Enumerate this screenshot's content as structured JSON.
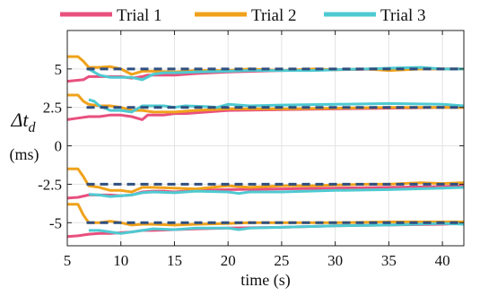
{
  "chart_data": {
    "type": "line",
    "xlabel": "time (s)",
    "ylabel_symbol": "Δt",
    "ylabel_subscript": "d",
    "ylabel_unit": "(ms)",
    "xlim": [
      5,
      42
    ],
    "ylim": [
      -6.5,
      7.5
    ],
    "xticks": [
      5,
      10,
      15,
      20,
      25,
      30,
      35,
      40
    ],
    "xtick_labels": [
      "5",
      "10",
      "15",
      "20",
      "25",
      "30",
      "35",
      "40"
    ],
    "yticks": [
      -5,
      -2.5,
      0,
      2.5,
      5
    ],
    "ytick_labels": [
      "-5",
      "-2.5",
      "0",
      "2.5",
      "5"
    ],
    "grid": true,
    "legend_position": "top",
    "reference_levels": [
      5,
      2.5,
      -2.5,
      -5
    ],
    "reference_color": "#2f4f7f",
    "series": [
      {
        "name": "Trial 1",
        "color": "#e8507e",
        "lines": [
          {
            "x": [
              5,
              6.5,
              7,
              8,
              9,
              10,
              11,
              12,
              12.5,
              13,
              14,
              15,
              17,
              20,
              25,
              30,
              35,
              40,
              42
            ],
            "y": [
              4.2,
              4.3,
              4.5,
              4.5,
              4.5,
              4.5,
              4.4,
              4.5,
              4.6,
              4.6,
              4.6,
              4.6,
              4.7,
              4.8,
              4.9,
              4.95,
              5.0,
              5.0,
              5.0
            ]
          },
          {
            "x": [
              5,
              6,
              7,
              8,
              9,
              10,
              11,
              12,
              12.5,
              13,
              14,
              15,
              16,
              18,
              20,
              25,
              30,
              35,
              40,
              42
            ],
            "y": [
              1.7,
              1.8,
              1.9,
              1.9,
              2.0,
              2.0,
              1.9,
              1.7,
              2.0,
              2.0,
              2.0,
              2.1,
              2.1,
              2.2,
              2.3,
              2.35,
              2.4,
              2.45,
              2.5,
              2.5
            ]
          },
          {
            "x": [
              5,
              6,
              7,
              8,
              9,
              10,
              11,
              12,
              13,
              14,
              15,
              17,
              20,
              25,
              30,
              35,
              40,
              42
            ],
            "y": [
              -3.4,
              -3.35,
              -3.2,
              -3.2,
              -3.2,
              -3.25,
              -3.2,
              -3.0,
              -2.95,
              -2.95,
              -3.0,
              -2.9,
              -2.85,
              -2.8,
              -2.75,
              -2.7,
              -2.65,
              -2.6
            ]
          },
          {
            "x": [
              5,
              6,
              7,
              8,
              9,
              10,
              11,
              12,
              13,
              15,
              17,
              20,
              25,
              30,
              35,
              40,
              42
            ],
            "y": [
              -5.9,
              -5.85,
              -5.75,
              -5.7,
              -5.7,
              -5.65,
              -5.6,
              -5.5,
              -5.5,
              -5.45,
              -5.4,
              -5.35,
              -5.3,
              -5.2,
              -5.15,
              -5.1,
              -5.05
            ]
          }
        ]
      },
      {
        "name": "Trial 2",
        "color": "#f0a21a",
        "lines": [
          {
            "x": [
              5,
              6,
              6.5,
              7,
              8,
              9,
              10,
              11,
              12,
              13,
              15,
              17,
              20,
              22,
              25,
              28,
              30,
              33,
              35,
              38,
              40,
              42
            ],
            "y": [
              5.8,
              5.8,
              5.5,
              5.1,
              5.1,
              5.15,
              5.0,
              4.65,
              4.85,
              4.85,
              4.8,
              4.9,
              4.9,
              5.0,
              4.9,
              5.0,
              4.95,
              5.0,
              4.9,
              5.0,
              5.0,
              5.0
            ]
          },
          {
            "x": [
              5,
              6,
              6.5,
              7,
              8,
              9,
              10,
              11,
              12,
              13,
              15,
              17,
              20,
              22,
              25,
              30,
              35,
              40,
              42
            ],
            "y": [
              3.3,
              3.3,
              2.9,
              2.7,
              2.6,
              2.6,
              2.5,
              2.3,
              2.3,
              2.2,
              2.2,
              2.3,
              2.4,
              2.4,
              2.4,
              2.45,
              2.5,
              2.5,
              2.5
            ]
          },
          {
            "x": [
              5,
              6,
              6.5,
              7,
              8,
              9,
              10,
              11,
              12,
              13,
              15,
              17,
              20,
              22,
              25,
              28,
              30,
              33,
              35,
              38,
              40,
              42
            ],
            "y": [
              -1.5,
              -1.5,
              -2.0,
              -2.6,
              -2.7,
              -2.9,
              -2.9,
              -3.0,
              -2.7,
              -2.7,
              -2.75,
              -2.8,
              -2.6,
              -2.7,
              -2.6,
              -2.6,
              -2.55,
              -2.5,
              -2.5,
              -2.4,
              -2.45,
              -2.4
            ]
          },
          {
            "x": [
              5,
              6,
              6.5,
              7,
              8,
              9,
              10,
              11,
              12,
              13,
              15,
              17,
              20,
              22,
              25,
              30,
              35,
              40,
              42
            ],
            "y": [
              -3.8,
              -3.8,
              -4.5,
              -5.0,
              -5.0,
              -4.9,
              -5.0,
              -5.15,
              -5.1,
              -5.1,
              -5.15,
              -5.1,
              -5.05,
              -5.0,
              -5.0,
              -5.0,
              -4.95,
              -4.95,
              -4.95
            ]
          }
        ]
      },
      {
        "name": "Trial 3",
        "color": "#4ecad1",
        "lines": [
          {
            "x": [
              7,
              8,
              9,
              10,
              11,
              12,
              13,
              14,
              15,
              17,
              20,
              22,
              25,
              28,
              30,
              33,
              35,
              38,
              40,
              42
            ],
            "y": [
              5.0,
              4.6,
              4.45,
              4.45,
              4.45,
              4.3,
              4.65,
              4.75,
              4.75,
              4.8,
              4.85,
              4.9,
              4.9,
              4.9,
              4.95,
              5.0,
              5.05,
              5.1,
              5.0,
              5.0
            ]
          },
          {
            "x": [
              7,
              7.5,
              8,
              9,
              10,
              11,
              12,
              13,
              14,
              15,
              16,
              18,
              19,
              20,
              22,
              25,
              30,
              35,
              40,
              42
            ],
            "y": [
              3.0,
              2.9,
              2.6,
              2.3,
              2.3,
              2.2,
              2.6,
              2.6,
              2.6,
              2.5,
              2.6,
              2.55,
              2.5,
              2.7,
              2.6,
              2.65,
              2.7,
              2.75,
              2.7,
              2.6
            ]
          },
          {
            "x": [
              7,
              8,
              9,
              10,
              11,
              12,
              13,
              15,
              17,
              20,
              21,
              22,
              25,
              30,
              35,
              40,
              42
            ],
            "y": [
              -3.15,
              -3.2,
              -3.3,
              -3.25,
              -3.2,
              -3.05,
              -3.0,
              -3.05,
              -2.95,
              -3.0,
              -3.1,
              -3.0,
              -3.0,
              -2.9,
              -2.85,
              -2.75,
              -2.7
            ]
          },
          {
            "x": [
              7,
              8,
              9,
              10,
              11,
              12,
              13,
              15,
              17,
              20,
              21,
              22,
              25,
              30,
              35,
              40,
              42
            ],
            "y": [
              -5.5,
              -5.5,
              -5.6,
              -5.7,
              -5.6,
              -5.5,
              -5.4,
              -5.45,
              -5.35,
              -5.35,
              -5.45,
              -5.35,
              -5.3,
              -5.2,
              -5.15,
              -5.05,
              -5.1
            ]
          }
        ]
      }
    ]
  }
}
